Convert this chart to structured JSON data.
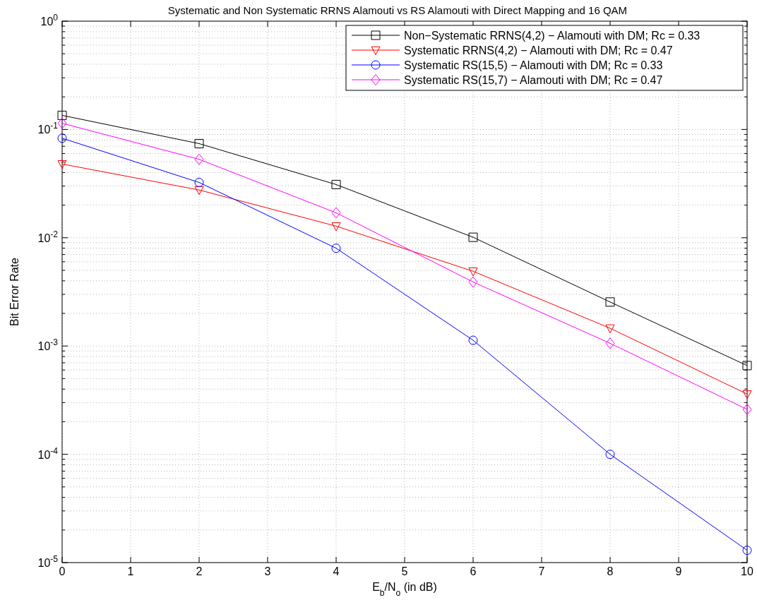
{
  "chart_data": {
    "type": "line",
    "title": "Systematic and Non Systematic RRNS Alamouti vs RS Alamouti with Direct Mapping and 16 QAM",
    "xlabel": "E$_{b}$/N$_{o}$ (in dB)",
    "ylabel": "Bit Error Rate",
    "x": [
      0,
      2,
      4,
      6,
      8,
      10
    ],
    "series": [
      {
        "name": "Non−Systematic RRNS(4,2) − Alamouti with DM; Rc = 0.33",
        "color": "#000000",
        "marker": "square",
        "values": [
          0.135,
          0.074,
          0.031,
          0.0101,
          0.00255,
          0.00066
        ]
      },
      {
        "name": "Systematic RRNS(4,2) − Alamouti with DM; Rc = 0.47",
        "color": "#ff0000",
        "marker": "triangle",
        "values": [
          0.048,
          0.0276,
          0.0128,
          0.0049,
          0.00146,
          0.00036
        ]
      },
      {
        "name": "Systematic RS(15,5) − Alamouti with DM; Rc = 0.33",
        "color": "#0000ff",
        "marker": "circle",
        "values": [
          0.083,
          0.0324,
          0.008,
          0.00113,
          0.0001,
          1.3e-05
        ]
      },
      {
        "name": "Systematic RS(15,7) − Alamouti with DM; Rc = 0.47",
        "color": "#ff00ff",
        "marker": "diamond",
        "values": [
          0.114,
          0.053,
          0.017,
          0.0039,
          0.00106,
          0.00026
        ]
      }
    ],
    "xlim": [
      0,
      10
    ],
    "xticks": [
      0,
      1,
      2,
      3,
      4,
      5,
      6,
      7,
      8,
      9,
      10
    ],
    "ylim": [
      1e-05,
      1
    ],
    "yticks": [
      {
        "value": 1e-05,
        "label": "10$^{-5}$"
      },
      {
        "value": 0.0001,
        "label": "10$^{-4}$"
      },
      {
        "value": 0.001,
        "label": "10$^{-3}$"
      },
      {
        "value": 0.01,
        "label": "10$^{-2}$"
      },
      {
        "value": 0.1,
        "label": "10$^{-1}$"
      },
      {
        "value": 1,
        "label": "10$^{0}$"
      }
    ],
    "log": "y",
    "grid": true,
    "legend": "top right",
    "line_style": "solid"
  }
}
